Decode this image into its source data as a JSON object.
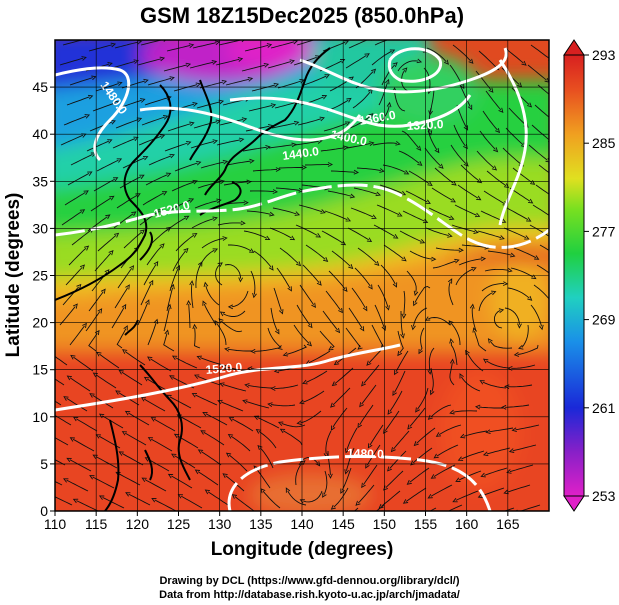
{
  "chart_data": {
    "type": "heatmap",
    "title": "GSM 18Z15Dec2025 (850.0hPa)",
    "xlabel": "Longitude (degrees)",
    "ylabel": "Latitude  (degrees)",
    "xlim": [
      110,
      170
    ],
    "ylim": [
      0,
      50
    ],
    "xticks": [
      "110",
      "115",
      "120",
      "125",
      "130",
      "135",
      "140",
      "145",
      "150",
      "155",
      "160",
      "165"
    ],
    "yticks": [
      "0",
      "5",
      "10",
      "15",
      "20",
      "25",
      "30",
      "35",
      "40",
      "45"
    ],
    "colorbar": {
      "ticks": [
        "253",
        "261",
        "269",
        "277",
        "285",
        "293"
      ],
      "range": [
        253,
        293
      ],
      "colors": [
        "#e020c8",
        "#8820c8",
        "#1a28d8",
        "#1a90e8",
        "#20d0c0",
        "#20d040",
        "#78e020",
        "#e0e020",
        "#f0a020",
        "#e85020",
        "#d82020"
      ]
    },
    "contour_labels": [
      "1480.0",
      "1440.0",
      "1400.0",
      "1360.0",
      "1320.0",
      "1520.0",
      "1520.0",
      "1480.0"
    ],
    "grid": true
  },
  "footer": {
    "line1": "Drawing by DCL (https://www.gfd-dennou.org/library/dcl/)",
    "line2": "Data from http://database.rish.kyoto-u.ac.jp/arch/jmadata/"
  }
}
